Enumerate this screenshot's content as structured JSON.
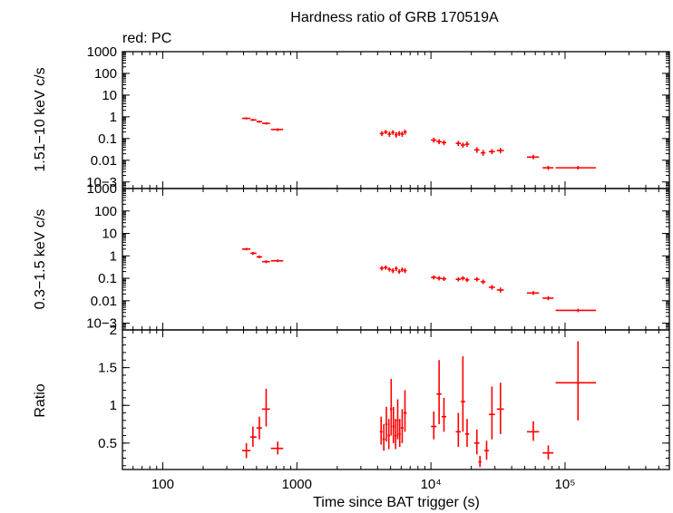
{
  "title": "Hardness ratio of GRB 170519A",
  "note": "red: PC",
  "colors": {
    "series": "#ff0000",
    "axes": "#000000"
  },
  "chart_data": [
    {
      "type": "scatter",
      "name": "hard-band",
      "ylabel": "1.51−10 keV c/s",
      "yscale": "log",
      "ylim": [
        0.0005,
        1000
      ],
      "xscale": "log",
      "xlim": [
        50,
        600000
      ],
      "yticks": [
        "1000",
        "100",
        "10",
        "1",
        "0.1",
        "0.01",
        "10−3"
      ],
      "ytick_values": [
        1000,
        100,
        10,
        1,
        0.1,
        0.01,
        0.001
      ],
      "points": [
        {
          "x": 420,
          "xlo": 390,
          "xhi": 450,
          "y": 0.85,
          "ylo": 0.75,
          "yhi": 0.95
        },
        {
          "x": 470,
          "xlo": 450,
          "xhi": 500,
          "y": 0.72,
          "ylo": 0.64,
          "yhi": 0.8
        },
        {
          "x": 525,
          "xlo": 500,
          "xhi": 550,
          "y": 0.6,
          "ylo": 0.53,
          "yhi": 0.67
        },
        {
          "x": 590,
          "xlo": 550,
          "xhi": 630,
          "y": 0.5,
          "ylo": 0.44,
          "yhi": 0.56
        },
        {
          "x": 720,
          "xlo": 640,
          "xhi": 790,
          "y": 0.26,
          "ylo": 0.22,
          "yhi": 0.3
        },
        {
          "x": 4300,
          "xlo": 4150,
          "xhi": 4450,
          "y": 0.17,
          "ylo": 0.13,
          "yhi": 0.22
        },
        {
          "x": 4600,
          "xlo": 4450,
          "xhi": 4750,
          "y": 0.2,
          "ylo": 0.16,
          "yhi": 0.25
        },
        {
          "x": 4900,
          "xlo": 4750,
          "xhi": 5050,
          "y": 0.16,
          "ylo": 0.12,
          "yhi": 0.21
        },
        {
          "x": 5200,
          "xlo": 5050,
          "xhi": 5350,
          "y": 0.19,
          "ylo": 0.15,
          "yhi": 0.24
        },
        {
          "x": 5500,
          "xlo": 5350,
          "xhi": 5650,
          "y": 0.15,
          "ylo": 0.11,
          "yhi": 0.2
        },
        {
          "x": 5800,
          "xlo": 5650,
          "xhi": 5950,
          "y": 0.17,
          "ylo": 0.13,
          "yhi": 0.22
        },
        {
          "x": 6100,
          "xlo": 5950,
          "xhi": 6250,
          "y": 0.16,
          "ylo": 0.12,
          "yhi": 0.21
        },
        {
          "x": 6400,
          "xlo": 6250,
          "xhi": 6600,
          "y": 0.2,
          "ylo": 0.15,
          "yhi": 0.26
        },
        {
          "x": 10500,
          "xlo": 10000,
          "xhi": 11000,
          "y": 0.085,
          "ylo": 0.065,
          "yhi": 0.11
        },
        {
          "x": 11500,
          "xlo": 11000,
          "xhi": 12000,
          "y": 0.072,
          "ylo": 0.055,
          "yhi": 0.093
        },
        {
          "x": 12500,
          "xlo": 12000,
          "xhi": 13000,
          "y": 0.065,
          "ylo": 0.05,
          "yhi": 0.084
        },
        {
          "x": 16000,
          "xlo": 15300,
          "xhi": 16700,
          "y": 0.06,
          "ylo": 0.045,
          "yhi": 0.078
        },
        {
          "x": 17300,
          "xlo": 16700,
          "xhi": 18000,
          "y": 0.05,
          "ylo": 0.038,
          "yhi": 0.066
        },
        {
          "x": 18600,
          "xlo": 18000,
          "xhi": 19300,
          "y": 0.055,
          "ylo": 0.042,
          "yhi": 0.072
        },
        {
          "x": 22000,
          "xlo": 21000,
          "xhi": 23000,
          "y": 0.03,
          "ylo": 0.022,
          "yhi": 0.04
        },
        {
          "x": 24500,
          "xlo": 23500,
          "xhi": 25500,
          "y": 0.022,
          "ylo": 0.016,
          "yhi": 0.03
        },
        {
          "x": 28500,
          "xlo": 27000,
          "xhi": 30000,
          "y": 0.025,
          "ylo": 0.019,
          "yhi": 0.033
        },
        {
          "x": 33000,
          "xlo": 31000,
          "xhi": 35000,
          "y": 0.028,
          "ylo": 0.021,
          "yhi": 0.037
        },
        {
          "x": 58000,
          "xlo": 52000,
          "xhi": 64000,
          "y": 0.014,
          "ylo": 0.011,
          "yhi": 0.018
        },
        {
          "x": 75000,
          "xlo": 68000,
          "xhi": 82000,
          "y": 0.0045,
          "ylo": 0.0036,
          "yhi": 0.0056
        },
        {
          "x": 125000,
          "xlo": 85000,
          "xhi": 170000,
          "y": 0.0045,
          "ylo": 0.0037,
          "yhi": 0.0055
        }
      ]
    },
    {
      "type": "scatter",
      "name": "soft-band",
      "ylabel": "0.3−1.5 keV c/s",
      "yscale": "log",
      "ylim": [
        0.0005,
        1000
      ],
      "xscale": "log",
      "xlim": [
        50,
        600000
      ],
      "yticks": [
        "1000",
        "100",
        "10",
        "1",
        "0.1",
        "0.01",
        "10−3"
      ],
      "ytick_values": [
        1000,
        100,
        10,
        1,
        0.1,
        0.01,
        0.001
      ],
      "points": [
        {
          "x": 420,
          "xlo": 390,
          "xhi": 450,
          "y": 2.0,
          "ylo": 1.75,
          "yhi": 2.3
        },
        {
          "x": 470,
          "xlo": 450,
          "xhi": 500,
          "y": 1.3,
          "ylo": 1.1,
          "yhi": 1.5
        },
        {
          "x": 525,
          "xlo": 500,
          "xhi": 550,
          "y": 0.9,
          "ylo": 0.78,
          "yhi": 1.04
        },
        {
          "x": 590,
          "xlo": 550,
          "xhi": 630,
          "y": 0.55,
          "ylo": 0.47,
          "yhi": 0.64
        },
        {
          "x": 720,
          "xlo": 640,
          "xhi": 790,
          "y": 0.6,
          "ylo": 0.52,
          "yhi": 0.69
        },
        {
          "x": 4300,
          "xlo": 4150,
          "xhi": 4450,
          "y": 0.28,
          "ylo": 0.22,
          "yhi": 0.35
        },
        {
          "x": 4600,
          "xlo": 4450,
          "xhi": 4750,
          "y": 0.3,
          "ylo": 0.24,
          "yhi": 0.37
        },
        {
          "x": 4900,
          "xlo": 4750,
          "xhi": 5050,
          "y": 0.25,
          "ylo": 0.2,
          "yhi": 0.31
        },
        {
          "x": 5200,
          "xlo": 5050,
          "xhi": 5350,
          "y": 0.22,
          "ylo": 0.17,
          "yhi": 0.28
        },
        {
          "x": 5500,
          "xlo": 5350,
          "xhi": 5650,
          "y": 0.27,
          "ylo": 0.21,
          "yhi": 0.34
        },
        {
          "x": 5800,
          "xlo": 5650,
          "xhi": 5950,
          "y": 0.2,
          "ylo": 0.16,
          "yhi": 0.25
        },
        {
          "x": 6100,
          "xlo": 5950,
          "xhi": 6250,
          "y": 0.24,
          "ylo": 0.19,
          "yhi": 0.3
        },
        {
          "x": 6400,
          "xlo": 6250,
          "xhi": 6600,
          "y": 0.22,
          "ylo": 0.17,
          "yhi": 0.28
        },
        {
          "x": 10500,
          "xlo": 10000,
          "xhi": 11000,
          "y": 0.11,
          "ylo": 0.088,
          "yhi": 0.135
        },
        {
          "x": 11500,
          "xlo": 11000,
          "xhi": 12000,
          "y": 0.1,
          "ylo": 0.08,
          "yhi": 0.125
        },
        {
          "x": 12500,
          "xlo": 12000,
          "xhi": 13000,
          "y": 0.095,
          "ylo": 0.076,
          "yhi": 0.118
        },
        {
          "x": 16000,
          "xlo": 15300,
          "xhi": 16700,
          "y": 0.09,
          "ylo": 0.072,
          "yhi": 0.112
        },
        {
          "x": 17300,
          "xlo": 16700,
          "xhi": 18000,
          "y": 0.1,
          "ylo": 0.08,
          "yhi": 0.125
        },
        {
          "x": 18600,
          "xlo": 18000,
          "xhi": 19300,
          "y": 0.085,
          "ylo": 0.068,
          "yhi": 0.106
        },
        {
          "x": 22000,
          "xlo": 21000,
          "xhi": 23000,
          "y": 0.09,
          "ylo": 0.072,
          "yhi": 0.112
        },
        {
          "x": 24500,
          "xlo": 23500,
          "xhi": 25500,
          "y": 0.07,
          "ylo": 0.055,
          "yhi": 0.088
        },
        {
          "x": 28500,
          "xlo": 27000,
          "xhi": 30000,
          "y": 0.04,
          "ylo": 0.031,
          "yhi": 0.051
        },
        {
          "x": 33000,
          "xlo": 31000,
          "xhi": 35000,
          "y": 0.03,
          "ylo": 0.023,
          "yhi": 0.039
        },
        {
          "x": 58000,
          "xlo": 52000,
          "xhi": 64000,
          "y": 0.022,
          "ylo": 0.018,
          "yhi": 0.027
        },
        {
          "x": 75000,
          "xlo": 68000,
          "xhi": 82000,
          "y": 0.013,
          "ylo": 0.0105,
          "yhi": 0.016
        },
        {
          "x": 125000,
          "xlo": 85000,
          "xhi": 170000,
          "y": 0.0037,
          "ylo": 0.0031,
          "yhi": 0.0044
        }
      ]
    },
    {
      "type": "scatter",
      "name": "ratio",
      "ylabel": "Ratio",
      "xlabel": "Time since BAT trigger (s)",
      "yscale": "linear",
      "ylim": [
        0.15,
        2.0
      ],
      "xscale": "log",
      "xlim": [
        50,
        600000
      ],
      "yticks": [
        "2",
        "1.5",
        "1",
        "0.5"
      ],
      "ytick_values": [
        2,
        1.5,
        1,
        0.5
      ],
      "xticks": [
        "100",
        "1000",
        "10⁴",
        "10⁵"
      ],
      "xtick_values": [
        100,
        1000,
        10000,
        100000
      ],
      "points": [
        {
          "x": 420,
          "xlo": 390,
          "xhi": 450,
          "y": 0.4,
          "ylo": 0.3,
          "yhi": 0.5
        },
        {
          "x": 470,
          "xlo": 450,
          "xhi": 500,
          "y": 0.58,
          "ylo": 0.45,
          "yhi": 0.72
        },
        {
          "x": 525,
          "xlo": 500,
          "xhi": 550,
          "y": 0.7,
          "ylo": 0.55,
          "yhi": 0.85
        },
        {
          "x": 590,
          "xlo": 550,
          "xhi": 630,
          "y": 0.95,
          "ylo": 0.72,
          "yhi": 1.22
        },
        {
          "x": 720,
          "xlo": 640,
          "xhi": 790,
          "y": 0.43,
          "ylo": 0.35,
          "yhi": 0.52
        },
        {
          "x": 4250,
          "xlo": 4150,
          "xhi": 4350,
          "y": 0.65,
          "ylo": 0.48,
          "yhi": 0.85
        },
        {
          "x": 4450,
          "xlo": 4350,
          "xhi": 4550,
          "y": 0.55,
          "ylo": 0.4,
          "yhi": 0.75
        },
        {
          "x": 4650,
          "xlo": 4550,
          "xhi": 4750,
          "y": 0.75,
          "ylo": 0.52,
          "yhi": 0.98
        },
        {
          "x": 4850,
          "xlo": 4750,
          "xhi": 4950,
          "y": 0.6,
          "ylo": 0.42,
          "yhi": 0.82
        },
        {
          "x": 5050,
          "xlo": 4950,
          "xhi": 5150,
          "y": 0.95,
          "ylo": 0.6,
          "yhi": 1.35
        },
        {
          "x": 5250,
          "xlo": 5150,
          "xhi": 5350,
          "y": 0.72,
          "ylo": 0.5,
          "yhi": 0.98
        },
        {
          "x": 5450,
          "xlo": 5350,
          "xhi": 5550,
          "y": 0.6,
          "ylo": 0.42,
          "yhi": 0.82
        },
        {
          "x": 5650,
          "xlo": 5550,
          "xhi": 5750,
          "y": 0.8,
          "ylo": 0.55,
          "yhi": 1.08
        },
        {
          "x": 5850,
          "xlo": 5750,
          "xhi": 5950,
          "y": 0.62,
          "ylo": 0.45,
          "yhi": 0.82
        },
        {
          "x": 6100,
          "xlo": 5950,
          "xhi": 6250,
          "y": 0.7,
          "ylo": 0.5,
          "yhi": 0.95
        },
        {
          "x": 6400,
          "xlo": 6250,
          "xhi": 6600,
          "y": 0.9,
          "ylo": 0.65,
          "yhi": 1.2
        },
        {
          "x": 10500,
          "xlo": 10000,
          "xhi": 11000,
          "y": 0.72,
          "ylo": 0.55,
          "yhi": 0.92
        },
        {
          "x": 11500,
          "xlo": 11000,
          "xhi": 12000,
          "y": 1.15,
          "ylo": 0.75,
          "yhi": 1.6
        },
        {
          "x": 12500,
          "xlo": 12000,
          "xhi": 13000,
          "y": 0.85,
          "ylo": 0.65,
          "yhi": 1.1
        },
        {
          "x": 16000,
          "xlo": 15300,
          "xhi": 16700,
          "y": 0.65,
          "ylo": 0.45,
          "yhi": 0.9
        },
        {
          "x": 17300,
          "xlo": 16700,
          "xhi": 18000,
          "y": 1.05,
          "ylo": 0.65,
          "yhi": 1.65
        },
        {
          "x": 18600,
          "xlo": 18000,
          "xhi": 19300,
          "y": 0.62,
          "ylo": 0.45,
          "yhi": 0.82
        },
        {
          "x": 22000,
          "xlo": 21000,
          "xhi": 23000,
          "y": 0.5,
          "ylo": 0.35,
          "yhi": 0.68
        },
        {
          "x": 23200,
          "xlo": 22600,
          "xhi": 23800,
          "y": 0.25,
          "ylo": 0.18,
          "yhi": 0.33
        },
        {
          "x": 26000,
          "xlo": 25000,
          "xhi": 27000,
          "y": 0.4,
          "ylo": 0.28,
          "yhi": 0.53
        },
        {
          "x": 28500,
          "xlo": 27000,
          "xhi": 30000,
          "y": 0.88,
          "ylo": 0.55,
          "yhi": 1.25
        },
        {
          "x": 33000,
          "xlo": 31000,
          "xhi": 35000,
          "y": 0.95,
          "ylo": 0.62,
          "yhi": 1.3
        },
        {
          "x": 58000,
          "xlo": 52000,
          "xhi": 64000,
          "y": 0.65,
          "ylo": 0.53,
          "yhi": 0.79
        },
        {
          "x": 75000,
          "xlo": 68000,
          "xhi": 82000,
          "y": 0.37,
          "ylo": 0.28,
          "yhi": 0.47
        },
        {
          "x": 125000,
          "xlo": 85000,
          "xhi": 170000,
          "y": 1.3,
          "ylo": 0.8,
          "yhi": 1.85
        }
      ]
    }
  ]
}
